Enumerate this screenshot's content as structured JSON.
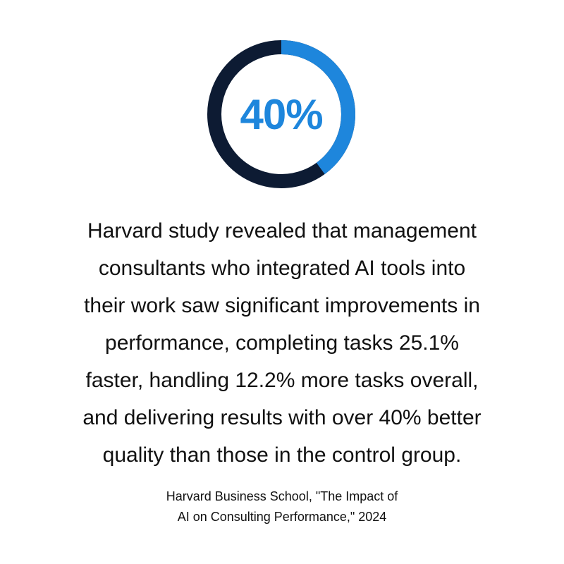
{
  "chart_data": {
    "type": "pie",
    "style": "donut",
    "value": 40,
    "max": 100,
    "center_label": "40%",
    "colors": {
      "value": "#1e86dc",
      "remainder": "#0d1b33"
    }
  },
  "body": {
    "lines": [
      "Harvard study revealed that management",
      "consultants who integrated AI tools into",
      "their work saw significant improvements in",
      "performance, completing tasks 25.1%",
      "faster, handling 12.2% more tasks overall,",
      "and delivering results with over 40% better",
      "quality than those in the control group."
    ]
  },
  "source": {
    "lines": [
      "Harvard Business School, \"The Impact of",
      "AI on Consulting Performance,\" 2024"
    ]
  }
}
